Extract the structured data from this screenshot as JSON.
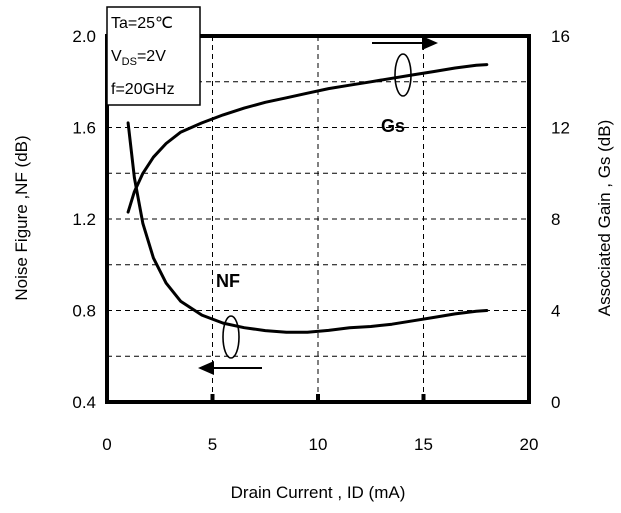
{
  "chart_data": {
    "type": "line",
    "xlabel": "Drain Current , ID (mA)",
    "ylabel_left": "Noise Figure ,NF (dB)",
    "ylabel_right": "Associated Gain , Gs (dB)",
    "xlim": [
      0,
      20
    ],
    "ylim_left": [
      0.4,
      2.0
    ],
    "ylim_right": [
      0,
      16
    ],
    "x_ticks": [
      "0",
      "5",
      "10",
      "15",
      "20"
    ],
    "y_ticks_left": [
      "0.4",
      "0.8",
      "1.2",
      "1.6",
      "2.0"
    ],
    "y_ticks_right": [
      "0",
      "4",
      "8",
      "12",
      "16"
    ],
    "grid": true,
    "conditions": {
      "line1": "Ta=25℃",
      "line2_main": "V",
      "line2_sub": "DS",
      "line2_rest": "=2V",
      "line3": "f=20GHz"
    },
    "series": [
      {
        "name": "NF",
        "axis": "left",
        "x": [
          1.0,
          1.3,
          1.7,
          2.2,
          2.8,
          3.5,
          4.5,
          5.5,
          6.5,
          7.5,
          8.5,
          9.5,
          10.5,
          11.5,
          12.5,
          13.5,
          14.5,
          15.5,
          16.5,
          17.5,
          18.0
        ],
        "y": [
          1.62,
          1.38,
          1.18,
          1.03,
          0.92,
          0.84,
          0.78,
          0.745,
          0.725,
          0.712,
          0.705,
          0.705,
          0.713,
          0.725,
          0.73,
          0.74,
          0.755,
          0.77,
          0.785,
          0.797,
          0.8
        ]
      },
      {
        "name": "Gs",
        "axis": "right",
        "x": [
          1.0,
          1.3,
          1.7,
          2.2,
          2.8,
          3.5,
          4.5,
          5.5,
          6.5,
          7.5,
          8.5,
          9.5,
          10.5,
          11.5,
          12.5,
          13.5,
          14.5,
          15.5,
          16.5,
          17.5,
          18.0
        ],
        "y": [
          8.3,
          9.2,
          10.0,
          10.7,
          11.3,
          11.8,
          12.2,
          12.55,
          12.85,
          13.1,
          13.3,
          13.5,
          13.7,
          13.85,
          14.0,
          14.15,
          14.3,
          14.45,
          14.6,
          14.72,
          14.75
        ]
      }
    ]
  }
}
